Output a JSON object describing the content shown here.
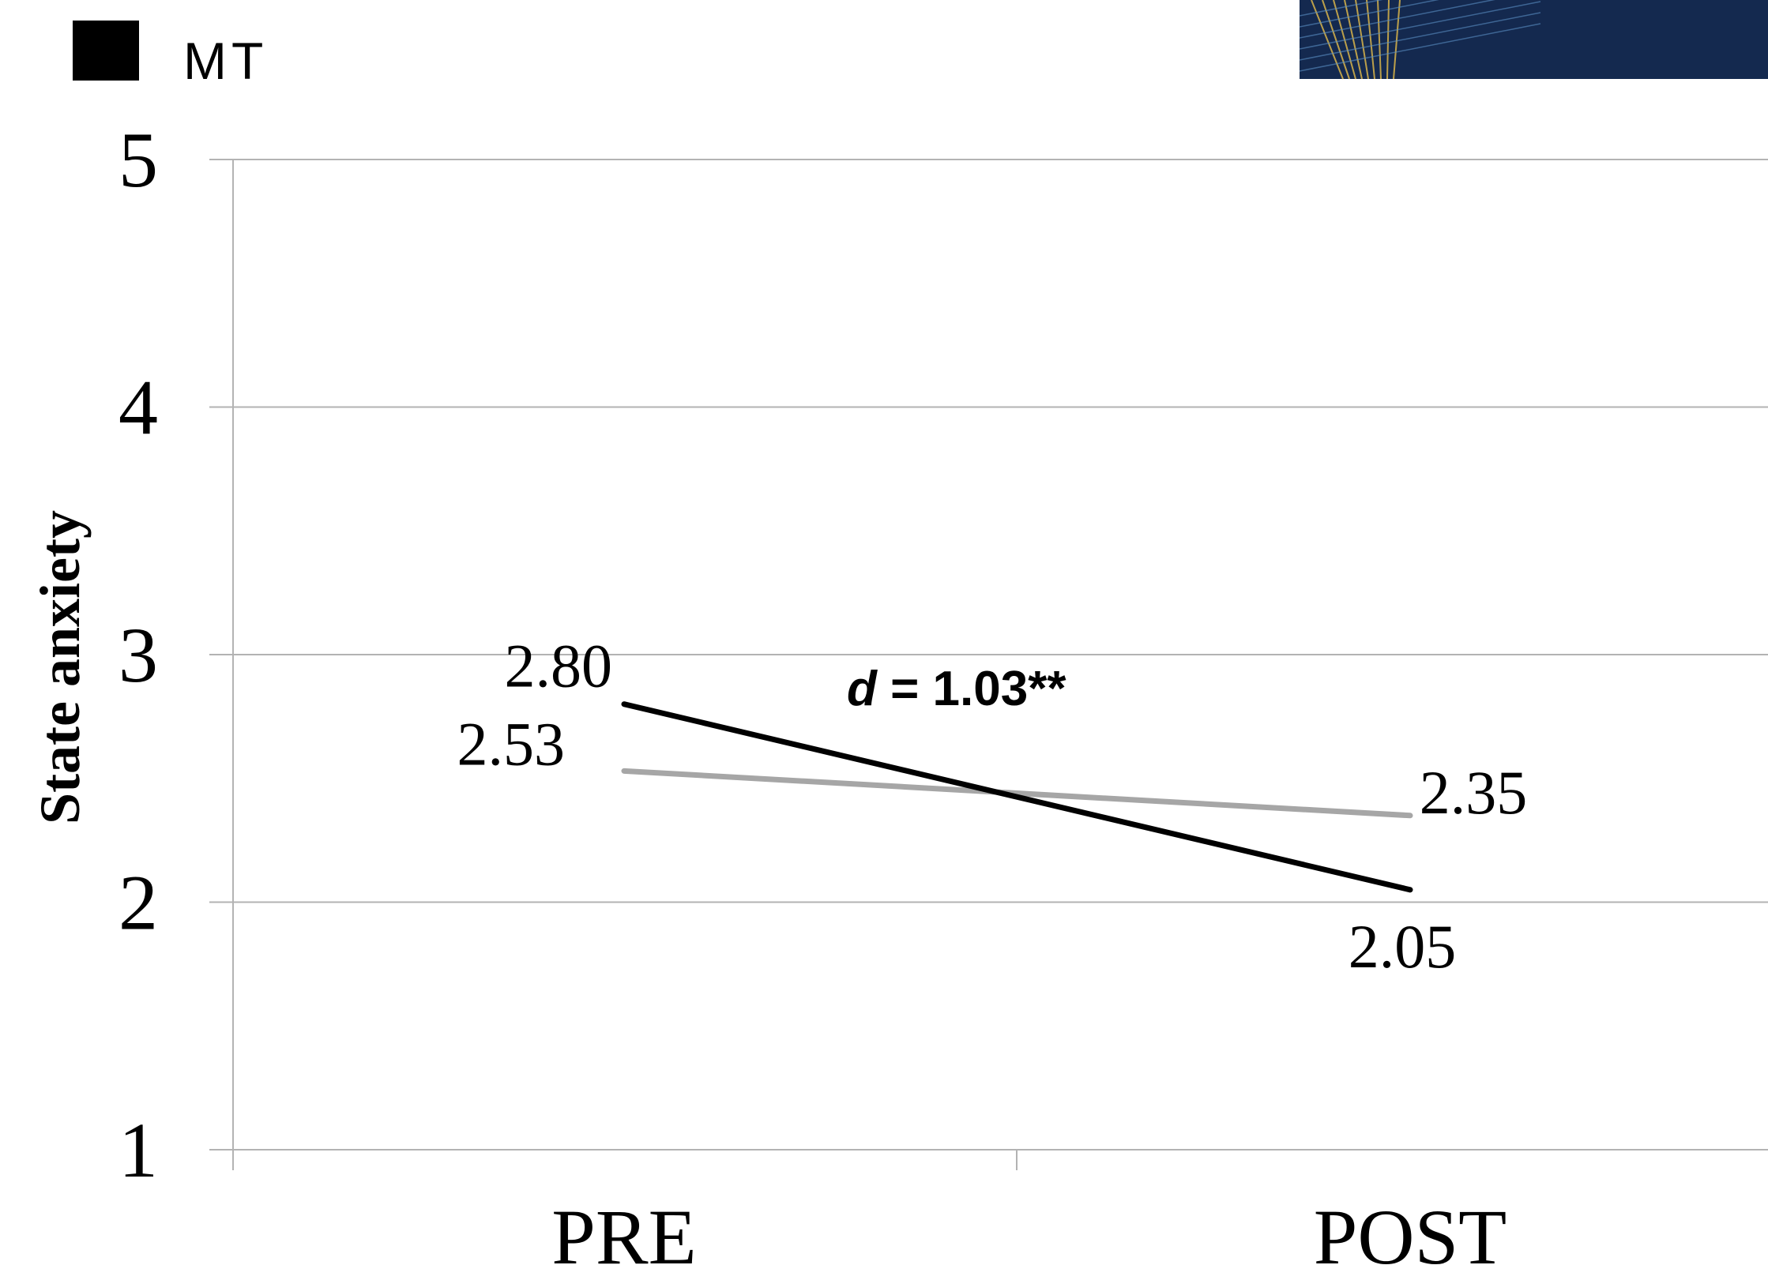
{
  "chart_data": {
    "type": "line",
    "categories": [
      "PRE",
      "POST"
    ],
    "series": [
      {
        "name": "MT",
        "values": [
          2.8,
          2.05
        ],
        "labels": [
          "2.80",
          "2.05"
        ],
        "color": "#000000"
      },
      {
        "values": [
          2.53,
          2.35
        ],
        "labels": [
          "2.53",
          "2.35"
        ],
        "color": "#a6a6a6"
      }
    ],
    "ylabel": "State anxiety",
    "ylim": [
      1,
      5
    ],
    "yticks": [
      "1",
      "2",
      "3",
      "4",
      "5"
    ],
    "grid": true,
    "legend_position": "top-left",
    "annotation": {
      "symbol": "d",
      "text": " = 1.03**"
    }
  },
  "colors": {
    "background": "#ffffff",
    "gridline": "#b3b3b3",
    "banner_navy": "#14294f",
    "banner_gold": "#d9b44a"
  }
}
